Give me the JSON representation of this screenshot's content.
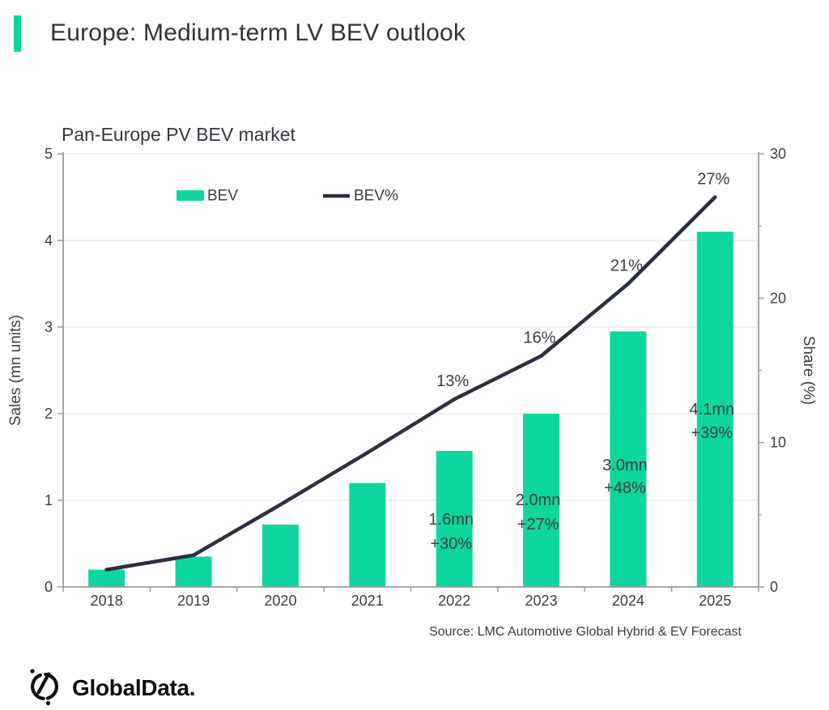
{
  "header": {
    "title": "Europe: Medium-term LV BEV outlook"
  },
  "chart": {
    "title": "Pan-Europe PV BEV market",
    "source": "Source: LMC Automotive Global Hybrid & EV Forecast"
  },
  "footer": {
    "brand": "GlobalData."
  },
  "colors": {
    "accent_green": "#0ED6A0",
    "line_dark": "#2A3040",
    "title_dark": "#2F333C",
    "text_gray": "#3D3D3D",
    "axis_gray": "#9A9A9A",
    "grid_gray": "#E8E8E8"
  },
  "chart_data": {
    "type": "combo-bar-line",
    "categories": [
      "2018",
      "2019",
      "2020",
      "2021",
      "2022",
      "2023",
      "2024",
      "2025"
    ],
    "series": [
      {
        "name": "BEV",
        "type": "bar",
        "axis": "left",
        "values": [
          0.2,
          0.35,
          0.72,
          1.2,
          1.57,
          2.0,
          2.95,
          4.1
        ],
        "point_labels": [
          null,
          null,
          null,
          null,
          [
            "1.6mn",
            "+30%"
          ],
          [
            "2.0mn",
            "+27%"
          ],
          [
            "3.0mn",
            "+48%"
          ],
          [
            "4.1mn",
            "+39%"
          ]
        ]
      },
      {
        "name": "BEV%",
        "type": "line",
        "axis": "right",
        "values": [
          1.2,
          2.2,
          5.7,
          9.3,
          13,
          16,
          21,
          27
        ],
        "point_labels": [
          null,
          null,
          null,
          null,
          "13%",
          "16%",
          "21%",
          "27%"
        ]
      }
    ],
    "left_axis": {
      "label": "Sales (mn units)",
      "min": 0,
      "max": 5,
      "ticks": [
        0,
        1,
        2,
        3,
        4,
        5
      ]
    },
    "right_axis": {
      "label": "Share (%)",
      "min": 0,
      "max": 30,
      "ticks": [
        0,
        10,
        20,
        30
      ],
      "minor_ticks": [
        5,
        15,
        25
      ]
    },
    "legend": [
      {
        "label": "BEV",
        "swatch": "bar"
      },
      {
        "label": "BEV%",
        "swatch": "line"
      }
    ],
    "grid": true,
    "legend_position": "top-inside"
  }
}
